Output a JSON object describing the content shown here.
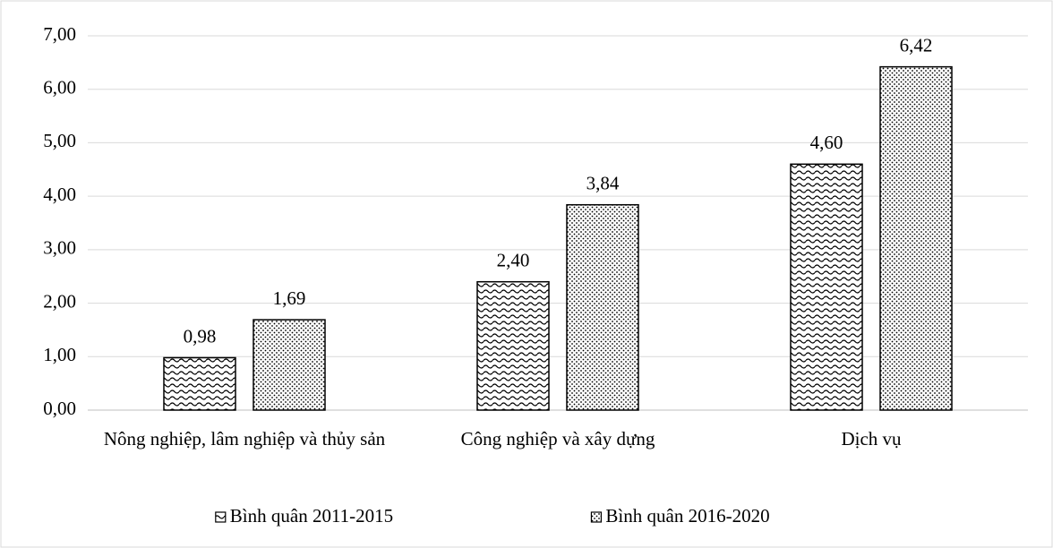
{
  "chart_data": {
    "type": "bar",
    "categories": [
      "Nông nghiệp, lâm nghiệp và thủy sản",
      "Công nghiệp và xây dựng",
      "Dịch vụ"
    ],
    "series": [
      {
        "name": "Bình quân 2011-2015",
        "color": "#000000",
        "pattern": "waves",
        "values": [
          0.98,
          2.4,
          4.6
        ],
        "value_labels": [
          "0,98",
          "2,40",
          "4,60"
        ]
      },
      {
        "name": "Bình quân 2016-2020",
        "color": "#000000",
        "pattern": "dots",
        "values": [
          1.69,
          3.84,
          6.42
        ],
        "value_labels": [
          "1,69",
          "3,84",
          "6,42"
        ]
      }
    ],
    "ylim": [
      0,
      7
    ],
    "yticks": [
      {
        "value": 0,
        "label": "0,00"
      },
      {
        "value": 1,
        "label": "1,00"
      },
      {
        "value": 2,
        "label": "2,00"
      },
      {
        "value": 3,
        "label": "3,00"
      },
      {
        "value": 4,
        "label": "4,00"
      },
      {
        "value": 5,
        "label": "5,00"
      },
      {
        "value": 6,
        "label": "6,00"
      },
      {
        "value": 7,
        "label": "7,00"
      }
    ],
    "grid": true,
    "legend": "bottom"
  }
}
